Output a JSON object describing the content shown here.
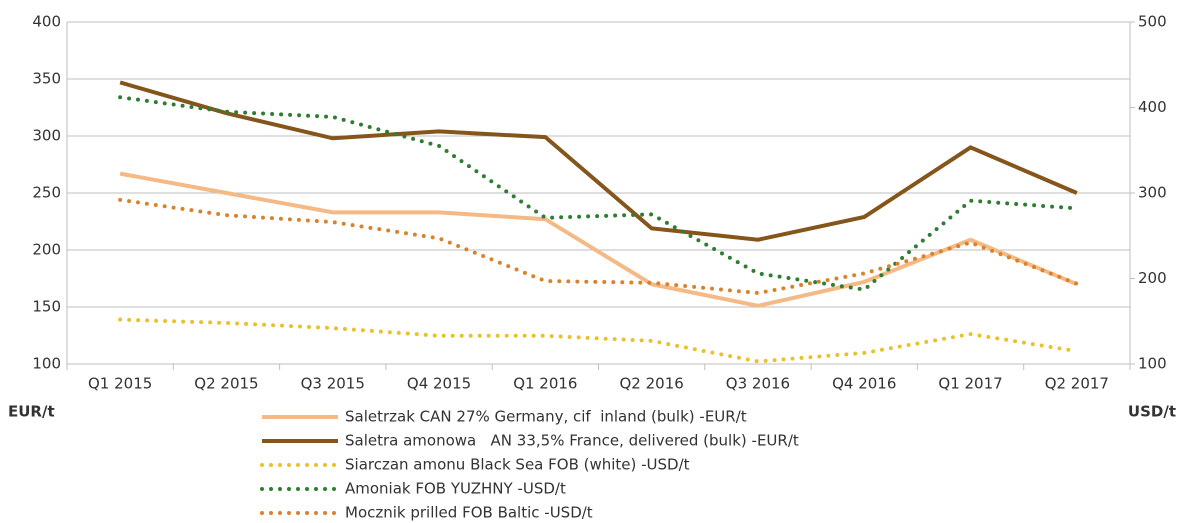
{
  "chart_data": {
    "type": "line",
    "categories": [
      "Q1 2015",
      "Q2 2015",
      "Q3 2015",
      "Q4 2015",
      "Q1 2016",
      "Q2 2016",
      "Q3 2016",
      "Q4 2016",
      "Q1 2017",
      "Q2 2017"
    ],
    "ylabel": "EUR/t",
    "y2label": "USD/t",
    "ylim": [
      100,
      400
    ],
    "yticks": [
      100,
      150,
      200,
      250,
      300,
      350,
      400
    ],
    "y2lim": [
      100,
      500
    ],
    "y2ticks": [
      100,
      200,
      300,
      400,
      500
    ],
    "grid": true,
    "legend": "bottom",
    "series": [
      {
        "name": "Saletrzak CAN 27% Germany, cif  inland (bulk) -EUR/t",
        "color": "#f4b984",
        "style": "solid",
        "axis": "y",
        "values": [
          267,
          250,
          233,
          233,
          227,
          170,
          151,
          172,
          209,
          170
        ]
      },
      {
        "name": "Saletra amonowa   AN 33,5% France, delivered (bulk) -EUR/t",
        "color": "#84561c",
        "style": "solid",
        "axis": "y",
        "values": [
          347,
          320,
          298,
          304,
          299,
          219,
          209,
          229,
          290,
          250
        ]
      },
      {
        "name": "Siarczan amonu Black Sea FOB (white) -USD/t",
        "color": "#e8c22a",
        "style": "dotted",
        "axis": "y2",
        "values": [
          152,
          148,
          142,
          133,
          133,
          127,
          103,
          113,
          135,
          115
        ]
      },
      {
        "name": "Amoniak FOB YUZHNY -USD/t",
        "color": "#2e7d32",
        "style": "dotted",
        "axis": "y2",
        "values": [
          412,
          395,
          389,
          355,
          271,
          275,
          206,
          187,
          291,
          282
        ]
      },
      {
        "name": "Mocznik prilled FOB Baltic -USD/t",
        "color": "#d9822b",
        "style": "dotted",
        "axis": "y2",
        "values": [
          292,
          274,
          266,
          247,
          197,
          195,
          183,
          206,
          242,
          194
        ]
      }
    ]
  }
}
